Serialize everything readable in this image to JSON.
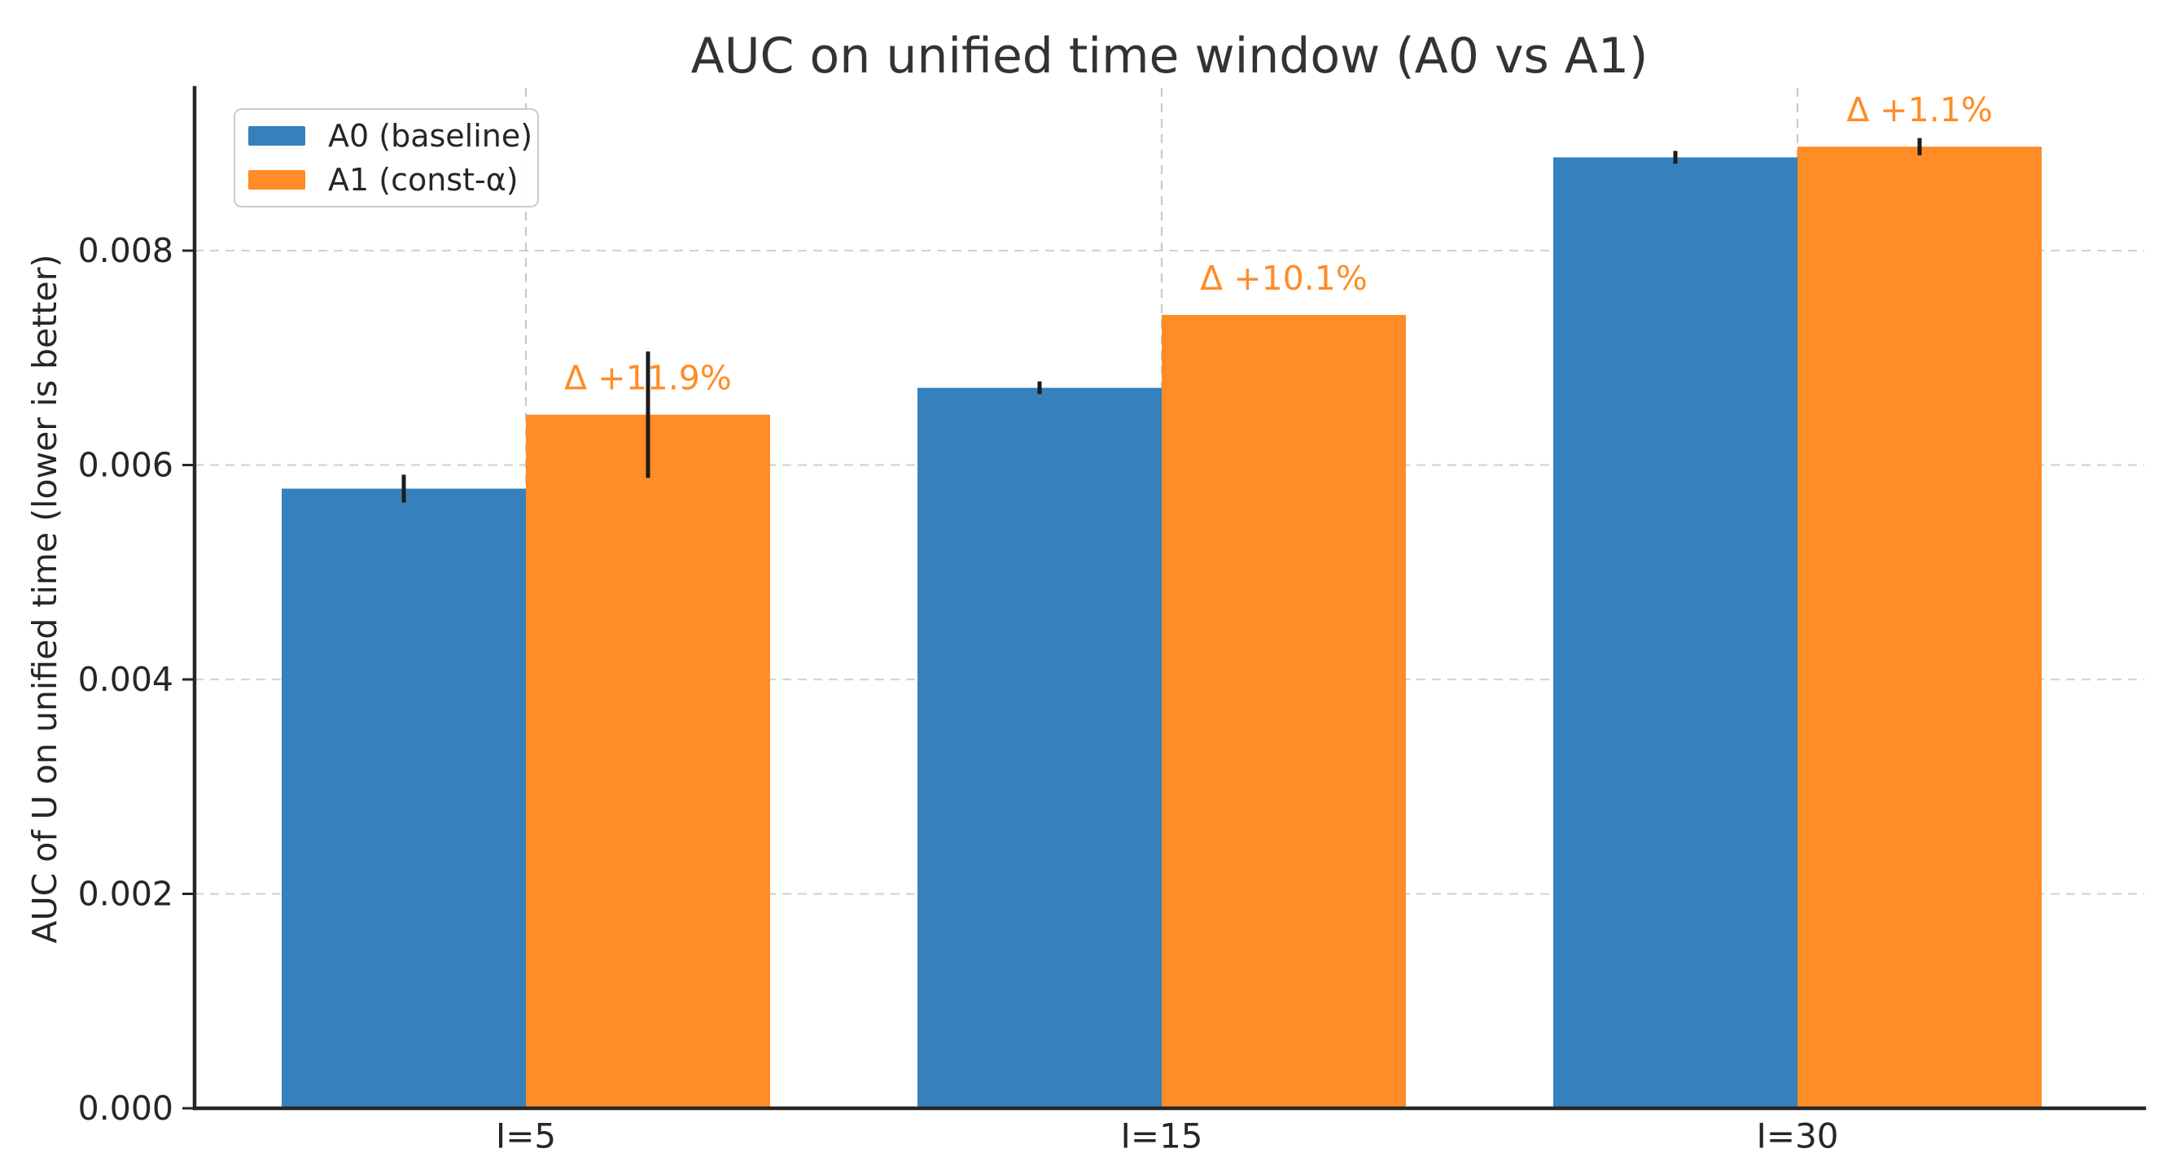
{
  "chart_data": {
    "type": "bar",
    "title": "AUC on unified time window (A0 vs A1)",
    "xlabel": "",
    "ylabel": "AUC of U on unified time (lower is better)",
    "categories": [
      "I=5",
      "I=15",
      "I=30"
    ],
    "series": [
      {
        "name": "A0 (baseline)",
        "color": "#3681bd",
        "values": [
          0.00578,
          0.00672,
          0.00887
        ],
        "errors": [
          0.00013,
          6e-05,
          6e-05
        ]
      },
      {
        "name": "A1 (const-α)",
        "color": "#ff8c26",
        "values": [
          0.00647,
          0.0074,
          0.00897
        ],
        "errors": [
          0.00059,
          0,
          8e-05
        ]
      }
    ],
    "annotations": [
      {
        "category": "I=5",
        "text": "Δ +11.9%",
        "color": "#ff8c26"
      },
      {
        "category": "I=15",
        "text": "Δ +10.1%",
        "color": "#ff8c26"
      },
      {
        "category": "I=30",
        "text": "Δ +1.1%",
        "color": "#ff8c26"
      }
    ],
    "yticks": [
      0.0,
      0.002,
      0.004,
      0.006,
      0.008
    ],
    "ytick_labels": [
      "0.000",
      "0.002",
      "0.004",
      "0.006",
      "0.008"
    ],
    "ylim": [
      0,
      0.0095
    ],
    "grid": "dashed horizontal and vertical gridlines, drawn below bars",
    "legend_position": "upper left",
    "error_bar_color": "#1c1c1c",
    "spine_color": "#262626",
    "title_color": "#333333"
  }
}
